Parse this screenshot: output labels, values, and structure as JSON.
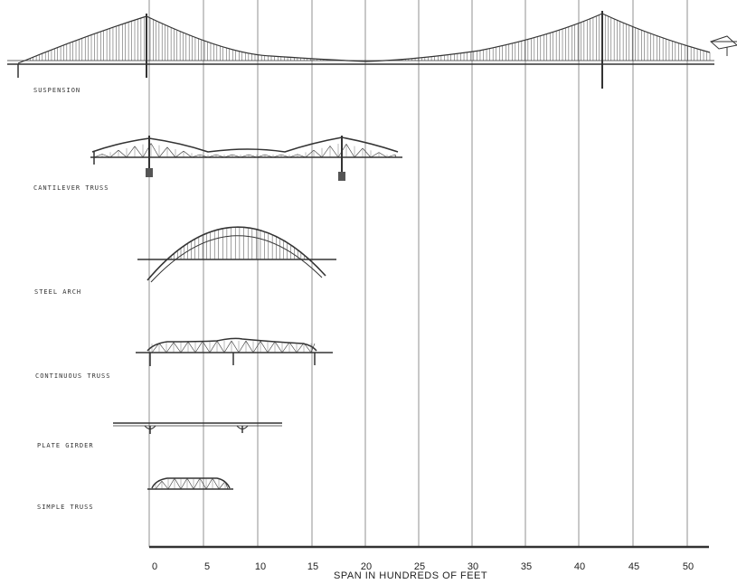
{
  "diagram": {
    "axis_title": "SPAN IN HUNDREDS OF FEET",
    "ticks": [
      "0",
      "5",
      "10",
      "15",
      "20",
      "25",
      "30",
      "35",
      "40",
      "45",
      "50"
    ],
    "bridge_types": [
      {
        "id": "suspension",
        "label": "SUSPENSION"
      },
      {
        "id": "cantilever",
        "label": "CANTILEVER TRUSS"
      },
      {
        "id": "arch",
        "label": "STEEL ARCH"
      },
      {
        "id": "continuous",
        "label": "CONTINUOUS TRUSS"
      },
      {
        "id": "girder",
        "label": "PLATE GIRDER"
      },
      {
        "id": "simple",
        "label": "SIMPLE TRUSS"
      }
    ],
    "line_color": "#333333",
    "grid_color": "#777777"
  }
}
